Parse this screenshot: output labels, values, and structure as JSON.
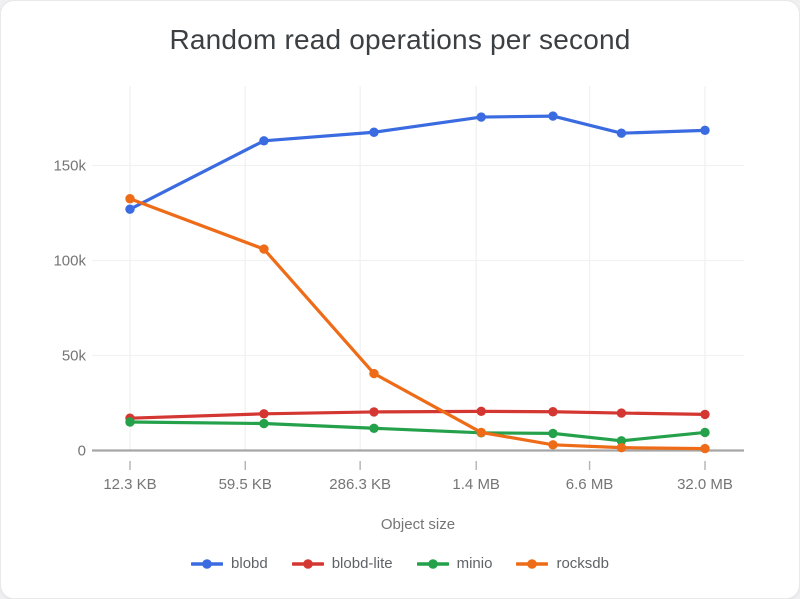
{
  "title": "Random read operations per second",
  "colors": {
    "card_background": "#ffffff",
    "page_background": "#f0eff1",
    "title_text": "#3c4043",
    "axis_label_text": "#757575",
    "legend_text": "#5f6368"
  },
  "chart_data": {
    "type": "line",
    "title": "Random read operations per second",
    "xlabel": "Object size",
    "ylabel": "",
    "x_scale": "log",
    "grid": true,
    "legend_position": "bottom",
    "grid_color": "#f1f1f1",
    "axis_color": "#a6a6a6",
    "tick_color": "#b3b3b3",
    "label_color": "#757575",
    "x_ticks": [
      {
        "label": "12.3 KB",
        "kb": 12.3
      },
      {
        "label": "59.5 KB",
        "kb": 59.5
      },
      {
        "label": "286.3 KB",
        "kb": 286.3
      },
      {
        "label": "1.4 MB",
        "kb": 1400
      },
      {
        "label": "6.6 MB",
        "kb": 6600
      },
      {
        "label": "32.0 MB",
        "kb": 32000
      }
    ],
    "y_ticks": [
      {
        "label": "0",
        "value": 0
      },
      {
        "label": "50k",
        "value": 50000
      },
      {
        "label": "100k",
        "value": 100000
      },
      {
        "label": "150k",
        "value": 150000
      }
    ],
    "ylim": [
      0,
      191000
    ],
    "x_kb": [
      12.3,
      76.8,
      346,
      1500,
      4000,
      10200,
      32000
    ],
    "series": [
      {
        "name": "blobd",
        "color": "#3b6be0",
        "values": [
          127000,
          163000,
          167500,
          175500,
          176000,
          167000,
          168500
        ]
      },
      {
        "name": "blobd-lite",
        "color": "#d43732",
        "values": [
          17000,
          19300,
          20300,
          20600,
          20400,
          19700,
          19000
        ]
      },
      {
        "name": "minio",
        "color": "#24a14a",
        "values": [
          15000,
          14200,
          11700,
          9300,
          9000,
          5100,
          9500
        ]
      },
      {
        "name": "rocksdb",
        "color": "#ee6b17",
        "values": [
          132500,
          106000,
          40500,
          9500,
          3000,
          1500,
          1000
        ]
      }
    ]
  }
}
